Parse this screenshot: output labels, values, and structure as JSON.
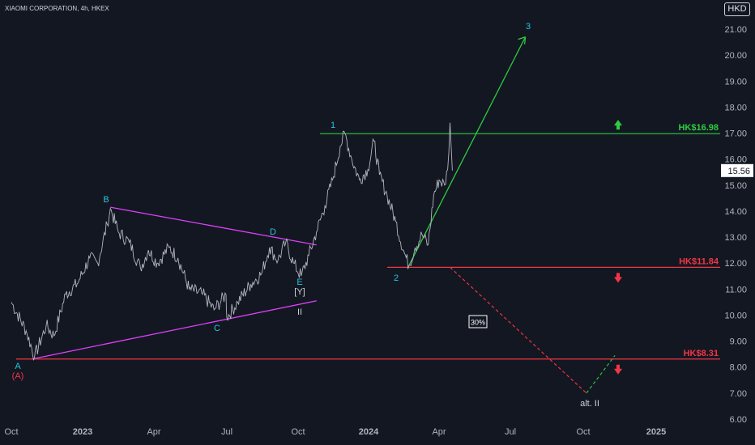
{
  "header": {
    "symbol": "XIAOMI CORPORATION, 4h, HKEX",
    "currency": "HKD"
  },
  "chart_data": {
    "type": "line",
    "title": "",
    "ylim": [
      6.0,
      22.0
    ],
    "y_ticks": [
      "6.00",
      "7.00",
      "8.00",
      "9.00",
      "10.00",
      "11.00",
      "12.00",
      "13.00",
      "14.00",
      "15.00",
      "16.00",
      "17.00",
      "18.00",
      "19.00",
      "20.00",
      "21.00"
    ],
    "x_ticks": [
      {
        "label": "Oct",
        "x": "2022-10"
      },
      {
        "label": "2023",
        "x": "2023-01"
      },
      {
        "label": "Apr",
        "x": "2023-04"
      },
      {
        "label": "Jul",
        "x": "2023-07"
      },
      {
        "label": "Oct",
        "x": "2023-10"
      },
      {
        "label": "2024",
        "x": "2024-01"
      },
      {
        "label": "Apr",
        "x": "2024-04"
      },
      {
        "label": "Jul",
        "x": "2024-07"
      },
      {
        "label": "Oct",
        "x": "2024-10"
      },
      {
        "label": "2025",
        "x": "2025-01"
      }
    ],
    "last_price": "15.56",
    "series": [
      {
        "values": [
          [
            "2022-10-01",
            10.5
          ],
          [
            "2022-10-20",
            9.4
          ],
          [
            "2022-10-31",
            8.4
          ],
          [
            "2022-11-15",
            9.6
          ],
          [
            "2022-11-25",
            9.2
          ],
          [
            "2022-12-10",
            10.8
          ],
          [
            "2022-12-25",
            11.2
          ],
          [
            "2023-01-10",
            12.2
          ],
          [
            "2023-01-20",
            12.0
          ],
          [
            "2023-02-01",
            13.5
          ],
          [
            "2023-02-05",
            14.1
          ],
          [
            "2023-02-15",
            13.2
          ],
          [
            "2023-03-01",
            12.8
          ],
          [
            "2023-03-15",
            11.8
          ],
          [
            "2023-03-25",
            12.5
          ],
          [
            "2023-04-05",
            12.0
          ],
          [
            "2023-04-20",
            12.6
          ],
          [
            "2023-05-01",
            12.2
          ],
          [
            "2023-05-15",
            11.0
          ],
          [
            "2023-06-01",
            10.8
          ],
          [
            "2023-06-15",
            10.2
          ],
          [
            "2023-06-30",
            10.8
          ],
          [
            "2023-07-01",
            9.9
          ],
          [
            "2023-07-15",
            10.5
          ],
          [
            "2023-08-01",
            11.2
          ],
          [
            "2023-08-15",
            11.6
          ],
          [
            "2023-08-25",
            12.6
          ],
          [
            "2023-09-05",
            12.1
          ],
          [
            "2023-09-15",
            12.8
          ],
          [
            "2023-09-25",
            12.0
          ],
          [
            "2023-10-05",
            11.5
          ],
          [
            "2023-10-15",
            12.3
          ],
          [
            "2023-10-25",
            13.2
          ],
          [
            "2023-11-05",
            14.2
          ],
          [
            "2023-11-15",
            15.2
          ],
          [
            "2023-11-25",
            16.5
          ],
          [
            "2023-12-01",
            17.0
          ],
          [
            "2023-12-10",
            16.0
          ],
          [
            "2023-12-20",
            15.2
          ],
          [
            "2023-12-31",
            15.6
          ],
          [
            "2024-01-08",
            16.7
          ],
          [
            "2024-01-15",
            15.4
          ],
          [
            "2024-01-25",
            14.6
          ],
          [
            "2024-02-05",
            13.6
          ],
          [
            "2024-02-15",
            12.5
          ],
          [
            "2024-02-22",
            11.9
          ],
          [
            "2024-03-01",
            12.6
          ],
          [
            "2024-03-10",
            13.1
          ],
          [
            "2024-03-18",
            12.7
          ],
          [
            "2024-03-25",
            14.6
          ],
          [
            "2024-04-01",
            15.2
          ],
          [
            "2024-04-08",
            15.0
          ],
          [
            "2024-04-12",
            15.6
          ],
          [
            "2024-04-15",
            17.4
          ],
          [
            "2024-04-18",
            15.56
          ]
        ]
      }
    ],
    "levels": [
      {
        "label": "HK$16.98",
        "y": 16.98,
        "color": "#2ecc40"
      },
      {
        "label": "HK$11.84",
        "y": 11.84,
        "color": "#f23645"
      },
      {
        "label": "HK$8.31",
        "y": 8.31,
        "color": "#f23645"
      }
    ],
    "wave_labels": [
      {
        "text": "A",
        "color": "#26c6da"
      },
      {
        "text": "(A)",
        "color": "#f23645"
      },
      {
        "text": "B",
        "color": "#26c6da"
      },
      {
        "text": "C",
        "color": "#26c6da"
      },
      {
        "text": "D",
        "color": "#26c6da"
      },
      {
        "text": "E",
        "color": "#26c6da"
      },
      {
        "text": "[Y]",
        "color": "#d1d4dc"
      },
      {
        "text": "II",
        "color": "#d1d4dc"
      },
      {
        "text": "1",
        "color": "#26c6da"
      },
      {
        "text": "2",
        "color": "#26c6da"
      },
      {
        "text": "3",
        "color": "#26c6da"
      },
      {
        "text": "alt. II",
        "color": "#d1d4dc"
      }
    ],
    "probability_box": "30%",
    "colors": {
      "price": "#b2b5be",
      "triangle": "#e040fb",
      "bull": "#2ecc40",
      "bear": "#f23645",
      "wave": "#26c6da"
    }
  }
}
